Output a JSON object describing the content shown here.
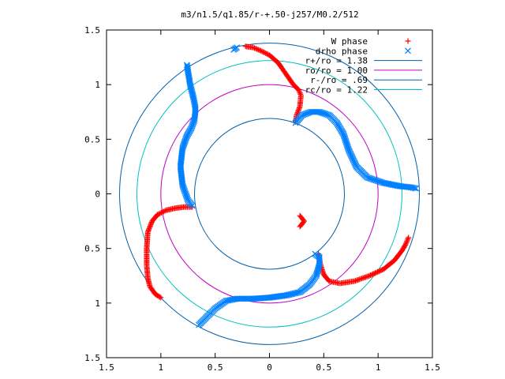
{
  "chart_data": {
    "type": "scatter",
    "title": "m3/n1.5/q1.85/r-+.50-j257/M0.2/512",
    "xlim": [
      -1.5,
      1.5
    ],
    "ylim": [
      -1.5,
      1.5
    ],
    "x_ticks": [
      -1.5,
      -1,
      -0.5,
      0,
      0.5,
      1,
      1.5
    ],
    "y_ticks": [
      -1.5,
      -1,
      -0.5,
      0,
      0.5,
      1,
      1.5
    ],
    "x_tick_labels": [
      "1.5",
      "1",
      "0.5",
      "0",
      "0.5",
      "1",
      "1.5"
    ],
    "y_tick_labels": [
      "1.5",
      "1",
      "0.5",
      "0",
      "0.5",
      "1",
      "1.5"
    ],
    "grid": false,
    "legend_position": "top-right",
    "series": [
      {
        "name": "W phase",
        "kind": "points",
        "marker": "plus",
        "color": "#ff0000",
        "points": [
          [
            -0.22,
            1.35
          ],
          [
            -0.15,
            1.34
          ],
          [
            -0.08,
            1.31
          ],
          [
            0.0,
            1.27
          ],
          [
            0.08,
            1.2
          ],
          [
            0.15,
            1.1
          ],
          [
            0.22,
            1.0
          ],
          [
            0.27,
            0.95
          ],
          [
            0.29,
            0.9
          ],
          [
            0.28,
            0.8
          ],
          [
            0.25,
            0.72
          ],
          [
            0.24,
            0.66
          ],
          [
            0.28,
            -0.2
          ],
          [
            0.32,
            -0.25
          ],
          [
            0.28,
            -0.3
          ],
          [
            -0.71,
            -0.12
          ],
          [
            -0.78,
            -0.12
          ],
          [
            -0.86,
            -0.13
          ],
          [
            -0.95,
            -0.15
          ],
          [
            -1.03,
            -0.19
          ],
          [
            -1.08,
            -0.25
          ],
          [
            -1.12,
            -0.35
          ],
          [
            -1.13,
            -0.5
          ],
          [
            -1.13,
            -0.65
          ],
          [
            -1.12,
            -0.77
          ],
          [
            -1.1,
            -0.85
          ],
          [
            -1.05,
            -0.92
          ],
          [
            -1.0,
            -0.95
          ],
          [
            0.45,
            -0.55
          ],
          [
            0.47,
            -0.65
          ],
          [
            0.5,
            -0.74
          ],
          [
            0.55,
            -0.8
          ],
          [
            0.65,
            -0.82
          ],
          [
            0.78,
            -0.8
          ],
          [
            0.92,
            -0.75
          ],
          [
            1.05,
            -0.69
          ],
          [
            1.15,
            -0.61
          ],
          [
            1.22,
            -0.52
          ],
          [
            1.25,
            -0.47
          ],
          [
            1.28,
            -0.4
          ]
        ]
      },
      {
        "name": "drho phase",
        "kind": "points",
        "marker": "cross",
        "color": "#0080ff",
        "points": [
          [
            -0.3,
            1.34
          ],
          [
            -0.33,
            1.32
          ],
          [
            0.24,
            0.65
          ],
          [
            0.3,
            0.72
          ],
          [
            0.38,
            0.75
          ],
          [
            0.46,
            0.75
          ],
          [
            0.55,
            0.72
          ],
          [
            0.62,
            0.65
          ],
          [
            0.68,
            0.55
          ],
          [
            0.73,
            0.4
          ],
          [
            0.8,
            0.25
          ],
          [
            0.9,
            0.15
          ],
          [
            1.05,
            0.1
          ],
          [
            1.2,
            0.07
          ],
          [
            1.3,
            0.06
          ],
          [
            1.35,
            0.05
          ],
          [
            -0.71,
            -0.11
          ],
          [
            -0.75,
            -0.06
          ],
          [
            -0.8,
            0.08
          ],
          [
            -0.82,
            0.25
          ],
          [
            -0.8,
            0.42
          ],
          [
            -0.76,
            0.53
          ],
          [
            -0.72,
            0.6
          ],
          [
            -0.69,
            0.68
          ],
          [
            -0.68,
            0.78
          ],
          [
            -0.7,
            0.88
          ],
          [
            -0.73,
            1.0
          ],
          [
            -0.75,
            1.12
          ],
          [
            -0.76,
            1.18
          ],
          [
            0.42,
            -0.55
          ],
          [
            0.46,
            -0.58
          ],
          [
            0.46,
            -0.65
          ],
          [
            0.43,
            -0.75
          ],
          [
            0.37,
            -0.83
          ],
          [
            0.28,
            -0.9
          ],
          [
            0.15,
            -0.93
          ],
          [
            0.0,
            -0.95
          ],
          [
            -0.15,
            -0.96
          ],
          [
            -0.3,
            -0.96
          ],
          [
            -0.4,
            -0.98
          ],
          [
            -0.5,
            -1.05
          ],
          [
            -0.58,
            -1.13
          ],
          [
            -0.65,
            -1.2
          ]
        ]
      },
      {
        "name": "r+/ro = 1.38",
        "kind": "circle",
        "radius": 1.38,
        "color": "#0060ad"
      },
      {
        "name": "ro/ro = 1.00",
        "kind": "circle",
        "radius": 1.0,
        "color": "#c000c0"
      },
      {
        "name": "r-/ro = .69",
        "kind": "circle",
        "radius": 0.69,
        "color": "#0060ad"
      },
      {
        "name": "rc/ro = 1.22",
        "kind": "circle",
        "radius": 1.22,
        "color": "#00c0c0"
      }
    ]
  }
}
